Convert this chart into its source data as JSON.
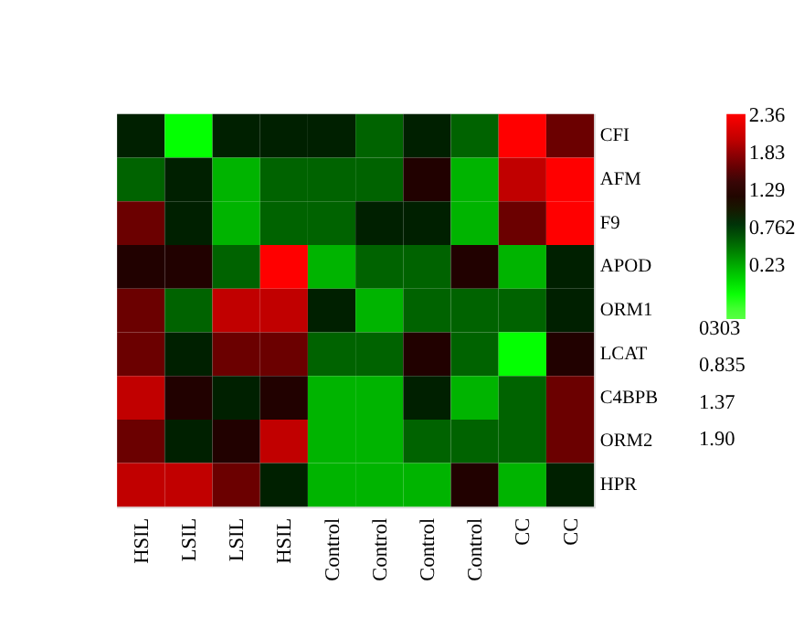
{
  "chart_data": {
    "type": "heatmap",
    "categories": [
      "HSIL",
      "LSIL",
      "LSIL",
      "HSIL",
      "Control",
      "Control",
      "Control",
      "Control",
      "CC",
      "CC"
    ],
    "y_categories": [
      "CFI",
      "AFM",
      "F9",
      "APOD",
      "ORM1",
      "LCAT",
      "C4BPB",
      "ORM2",
      "HPR"
    ],
    "cells": [
      [
        0.91,
        -0.19,
        0.91,
        0.91,
        0.91,
        0.55,
        0.91,
        0.55,
        2.37,
        1.64
      ],
      [
        0.55,
        0.91,
        0.18,
        0.55,
        0.55,
        0.55,
        1.28,
        0.18,
        2.01,
        2.37
      ],
      [
        1.64,
        0.91,
        0.18,
        0.55,
        0.55,
        0.91,
        0.91,
        0.18,
        1.64,
        2.37
      ],
      [
        1.28,
        1.28,
        0.55,
        2.37,
        0.18,
        0.55,
        0.55,
        1.28,
        0.18,
        0.91
      ],
      [
        1.64,
        0.55,
        2.01,
        2.01,
        0.91,
        0.18,
        0.55,
        0.55,
        0.55,
        0.91
      ],
      [
        1.64,
        0.91,
        1.64,
        1.64,
        0.55,
        0.55,
        1.28,
        0.55,
        -0.19,
        1.28
      ],
      [
        2.01,
        1.28,
        0.91,
        1.28,
        0.18,
        0.18,
        0.91,
        0.18,
        0.55,
        1.64
      ],
      [
        1.64,
        0.91,
        1.28,
        2.01,
        0.18,
        0.18,
        0.55,
        0.55,
        0.55,
        1.64
      ],
      [
        2.01,
        2.01,
        1.64,
        0.91,
        0.18,
        0.18,
        0.18,
        1.28,
        0.18,
        0.91
      ]
    ],
    "colors": [
      "#ffffff",
      "#00ff00",
      "#00b400",
      "#006400",
      "#002000",
      "#200000",
      "#6b0000",
      "#c00000",
      "#ff0000"
    ],
    "clim": [
      -0.55,
      2.37
    ],
    "cticks": [
      2.36,
      1.83,
      1.29,
      0.762,
      0.23
    ],
    "annotations": [
      "0303",
      "0.835",
      "1.37",
      "1.90"
    ]
  }
}
